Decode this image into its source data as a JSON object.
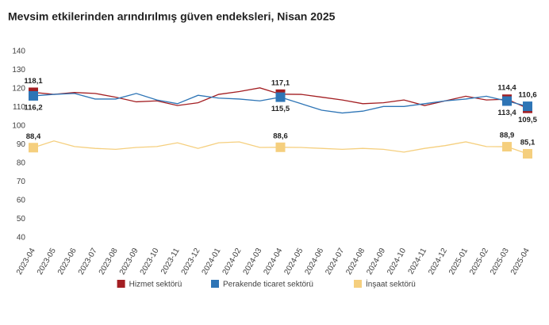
{
  "chart_data": {
    "type": "line",
    "title": "Mevsim etkilerinden arındırılmış güven endeksleri, Nisan 2025",
    "categories": [
      "2023-04",
      "2023-05",
      "2023-06",
      "2023-07",
      "2023-08",
      "2023-09",
      "2023-10",
      "2023-11",
      "2023-12",
      "2024-01",
      "2024-02",
      "2024-03",
      "2024-04",
      "2024-05",
      "2024-06",
      "2024-07",
      "2024-08",
      "2024-09",
      "2024-10",
      "2024-11",
      "2024-12",
      "2025-01",
      "2025-02",
      "2025-03",
      "2025-04"
    ],
    "series": [
      {
        "name": "Hizmet sektörü",
        "color": "#a31e22",
        "values": [
          118.1,
          117,
          118,
          117.5,
          115.5,
          113,
          113.5,
          111,
          112.5,
          117,
          118.5,
          120.5,
          117.1,
          117,
          115.5,
          114,
          112,
          112.5,
          114,
          111,
          113.5,
          116,
          114,
          114.4,
          109.5
        ],
        "value_labels": [
          "118,1",
          null,
          null,
          null,
          null,
          null,
          null,
          null,
          null,
          null,
          null,
          null,
          "117,1",
          null,
          null,
          null,
          null,
          null,
          null,
          null,
          null,
          null,
          null,
          "114,4",
          "109,5"
        ]
      },
      {
        "name": "Perakende ticaret sektörü",
        "color": "#2e75b6",
        "values": [
          116.2,
          117,
          117.5,
          114.5,
          114.5,
          117.5,
          114,
          112,
          116.5,
          115,
          114.5,
          113.5,
          115.5,
          112,
          108.5,
          107,
          108,
          110.5,
          110.5,
          112,
          113.5,
          114.5,
          116,
          113.4,
          110.6
        ],
        "value_labels": [
          "116,2",
          null,
          null,
          null,
          null,
          null,
          null,
          null,
          null,
          null,
          null,
          null,
          "115,5",
          null,
          null,
          null,
          null,
          null,
          null,
          null,
          null,
          null,
          null,
          "113,4",
          "110,6"
        ]
      },
      {
        "name": "İnşaat sektörü",
        "color": "#f5cf7e",
        "values": [
          88.4,
          92,
          89,
          88,
          87.5,
          88.5,
          89,
          91,
          88,
          91,
          91.5,
          88.5,
          88.6,
          88.5,
          88,
          87.5,
          88,
          87.5,
          86,
          88,
          89.5,
          91.5,
          89,
          88.9,
          85.1
        ],
        "value_labels": [
          "88,4",
          null,
          null,
          null,
          null,
          null,
          null,
          null,
          null,
          null,
          null,
          null,
          "88,6",
          null,
          null,
          null,
          null,
          null,
          null,
          null,
          null,
          null,
          null,
          "88,9",
          "85,1"
        ]
      }
    ],
    "ylim": [
      40,
      140
    ],
    "yticks": [
      40,
      50,
      60,
      70,
      80,
      90,
      100,
      110,
      120,
      130,
      140
    ],
    "grid": false
  }
}
